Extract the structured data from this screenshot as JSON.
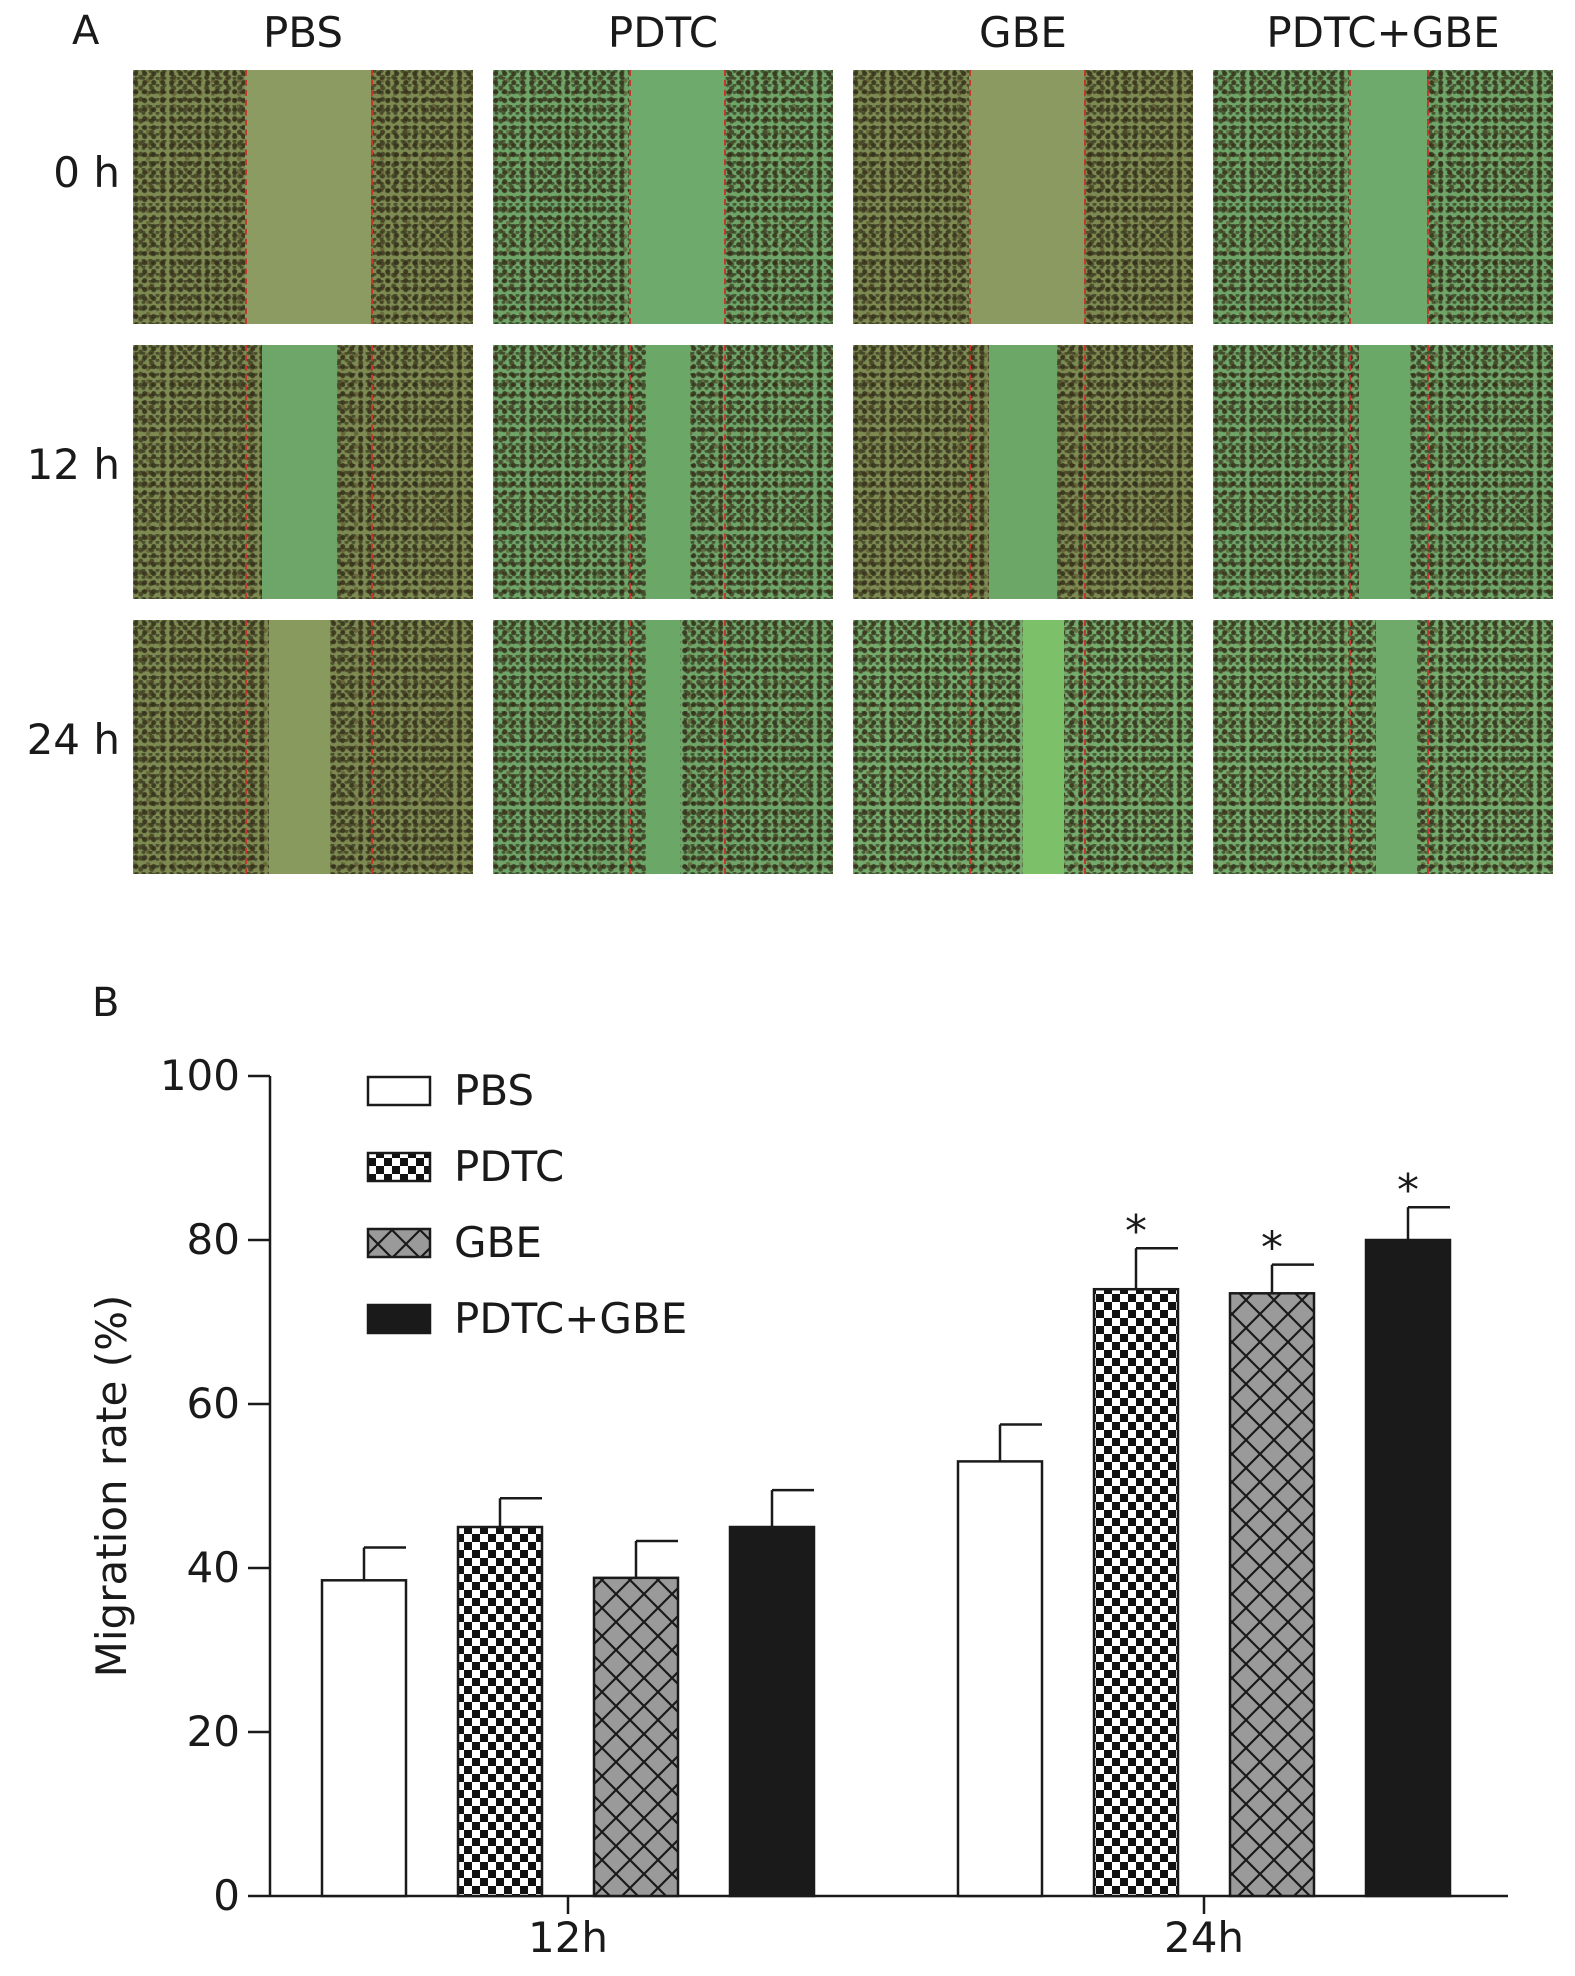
{
  "panel_a": {
    "letter": "A",
    "columns": [
      "PBS",
      "PDTC",
      "GBE",
      "PDTC+GBE"
    ],
    "rows": [
      "0 h",
      "12 h",
      "24 h"
    ]
  },
  "panel_b": {
    "letter": "B"
  },
  "chart_data": {
    "type": "bar",
    "categories": [
      "12h",
      "24h"
    ],
    "ylabel": "Migration rate (%)",
    "xlabel": "",
    "ylim": [
      0,
      100
    ],
    "yticks": [
      0,
      20,
      40,
      60,
      80,
      100
    ],
    "legend_position": "top-left",
    "series": [
      {
        "name": "PBS",
        "pattern": "white",
        "values": [
          38.5,
          53
        ],
        "errors": [
          4,
          4.5
        ],
        "significance": [
          "",
          ""
        ]
      },
      {
        "name": "PDTC",
        "pattern": "checker",
        "values": [
          45,
          74
        ],
        "errors": [
          3.5,
          5
        ],
        "significance": [
          "",
          "*"
        ]
      },
      {
        "name": "GBE",
        "pattern": "crosshatch",
        "values": [
          38.8,
          73.5
        ],
        "errors": [
          4.5,
          3.5
        ],
        "significance": [
          "",
          "*"
        ]
      },
      {
        "name": "PDTC+GBE",
        "pattern": "black",
        "values": [
          45,
          80
        ],
        "errors": [
          4.5,
          4
        ],
        "significance": [
          "",
          "*"
        ]
      }
    ]
  }
}
